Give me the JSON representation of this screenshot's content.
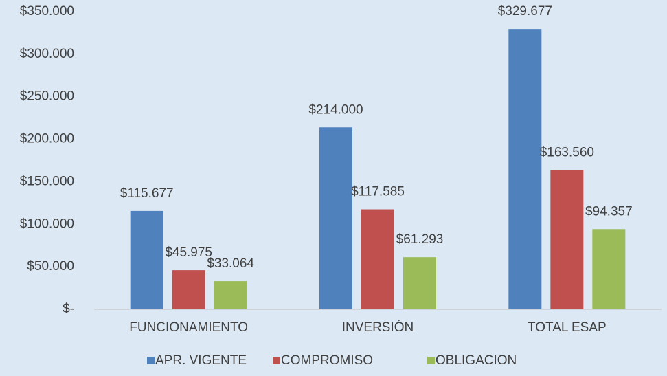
{
  "chart_data": {
    "type": "bar",
    "categories": [
      "FUNCIONAMIENTO",
      "INVERSIÓN",
      "TOTAL ESAP"
    ],
    "series": [
      {
        "name": "APR. VIGENTE",
        "color": "#4f81bd",
        "values": [
          115677,
          214000,
          329677
        ],
        "value_labels": [
          "$115.677",
          "$214.000",
          "$329.677"
        ]
      },
      {
        "name": "COMPROMISO",
        "color": "#c0504d",
        "values": [
          45975,
          117585,
          163560
        ],
        "value_labels": [
          "$45.975",
          "$117.585",
          "$163.560"
        ]
      },
      {
        "name": "OBLIGACION",
        "color": "#9bbb59",
        "values": [
          33064,
          61293,
          94357
        ],
        "value_labels": [
          "$33.064",
          "$61.293",
          "$94.357"
        ]
      }
    ],
    "ylim": [
      0,
      350000
    ],
    "yticks": [
      {
        "value": 0,
        "label": "$-"
      },
      {
        "value": 50000,
        "label": "$50.000"
      },
      {
        "value": 100000,
        "label": "$100.000"
      },
      {
        "value": 150000,
        "label": "$150.000"
      },
      {
        "value": 200000,
        "label": "$200.000"
      },
      {
        "value": 250000,
        "label": "$250.000"
      },
      {
        "value": 300000,
        "label": "$300.000"
      },
      {
        "value": 350000,
        "label": "$350.000"
      }
    ],
    "grid": false,
    "legend": "bottom"
  }
}
